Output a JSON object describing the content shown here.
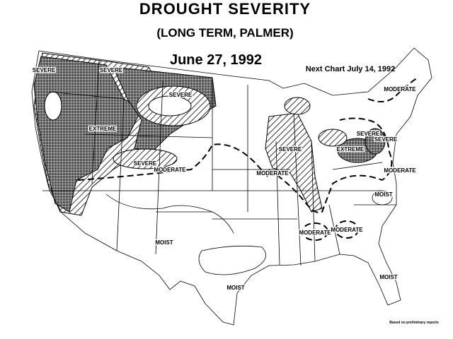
{
  "header": {
    "title": "DROUGHT SEVERITY",
    "subtitle": "(LONG TERM, PALMER)",
    "date": "June 27, 1992",
    "next_chart": "Next Chart July 14, 1992"
  },
  "map": {
    "labels": [
      "SEVERE",
      "SEVERE",
      "SEVERE",
      "EXTREME",
      "SEVERE",
      "MODERATE",
      "MODERATE",
      "SEVERE",
      "SEVERE",
      "EXTREME",
      "SEVERE",
      "MODERATE",
      "MODERATE",
      "MOIST",
      "MOIST",
      "MODERATE",
      "MODERATE",
      "MOIST",
      "MOIST"
    ]
  },
  "footnote": "Based on preliminary reports"
}
